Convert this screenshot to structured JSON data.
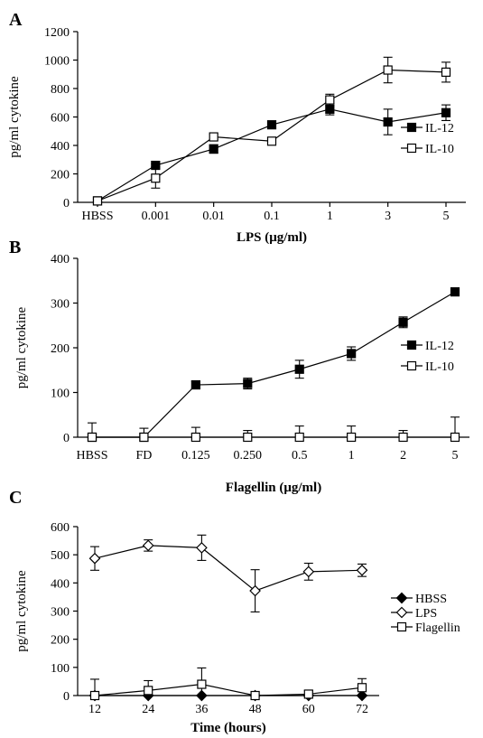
{
  "chart_data": [
    {
      "panel": "A",
      "type": "line",
      "categories": [
        "HBSS",
        "0.001",
        "0.01",
        "0.1",
        "1",
        "3",
        "5"
      ],
      "xlabel": "LPS (μg/ml)",
      "ylabel": "pg/ml cytokine",
      "ylim": [
        0,
        1200
      ],
      "yticks": [
        0,
        200,
        400,
        600,
        800,
        1000,
        1200
      ],
      "grid": false,
      "legend": "right",
      "series": [
        {
          "name": "IL-12",
          "marker": "filled-square",
          "values": [
            10,
            260,
            375,
            545,
            655,
            565,
            630
          ],
          "errors": [
            5,
            10,
            30,
            10,
            40,
            90,
            55
          ]
        },
        {
          "name": "IL-10",
          "marker": "open-square",
          "values": [
            10,
            170,
            460,
            430,
            720,
            930,
            915
          ],
          "errors": [
            5,
            70,
            20,
            25,
            40,
            90,
            70
          ]
        }
      ]
    },
    {
      "panel": "B",
      "type": "line",
      "categories": [
        "HBSS",
        "FD",
        "0.125",
        "0.250",
        "0.5",
        "1",
        "2",
        "5"
      ],
      "xlabel": "Flagellin (μg/ml)",
      "ylabel": "pg/ml cytokine",
      "ylim": [
        0,
        400
      ],
      "yticks": [
        0,
        100,
        200,
        300,
        400
      ],
      "grid": false,
      "legend": "right",
      "series": [
        {
          "name": "IL-12",
          "marker": "filled-square",
          "values": [
            0,
            0,
            117,
            120,
            152,
            187,
            257,
            325
          ],
          "errors": [
            0,
            0,
            8,
            12,
            20,
            15,
            12,
            5
          ]
        },
        {
          "name": "IL-10",
          "marker": "open-square",
          "values": [
            0,
            0,
            0,
            0,
            0,
            0,
            0,
            0
          ],
          "errors": [
            32,
            20,
            22,
            15,
            25,
            25,
            15,
            45
          ]
        }
      ]
    },
    {
      "panel": "C",
      "type": "line",
      "x": [
        12,
        24,
        36,
        48,
        60,
        72
      ],
      "xlabel": "Time (hours)",
      "ylabel": "pg/ml cytokine",
      "ylim": [
        0,
        600
      ],
      "yticks": [
        0,
        100,
        200,
        300,
        400,
        500,
        600
      ],
      "grid": false,
      "legend": "right",
      "series": [
        {
          "name": "HBSS",
          "marker": "filled-diamond",
          "values": [
            0,
            0,
            0,
            0,
            0,
            0
          ],
          "errors": [
            0,
            0,
            0,
            0,
            0,
            0
          ]
        },
        {
          "name": "LPS",
          "marker": "open-diamond",
          "values": [
            487,
            533,
            525,
            372,
            440,
            445
          ],
          "errors": [
            42,
            20,
            45,
            75,
            30,
            22
          ]
        },
        {
          "name": "Flagellin",
          "marker": "open-square",
          "values": [
            0,
            18,
            40,
            0,
            5,
            28
          ],
          "errors": [
            58,
            35,
            58,
            0,
            12,
            32
          ]
        }
      ]
    }
  ]
}
